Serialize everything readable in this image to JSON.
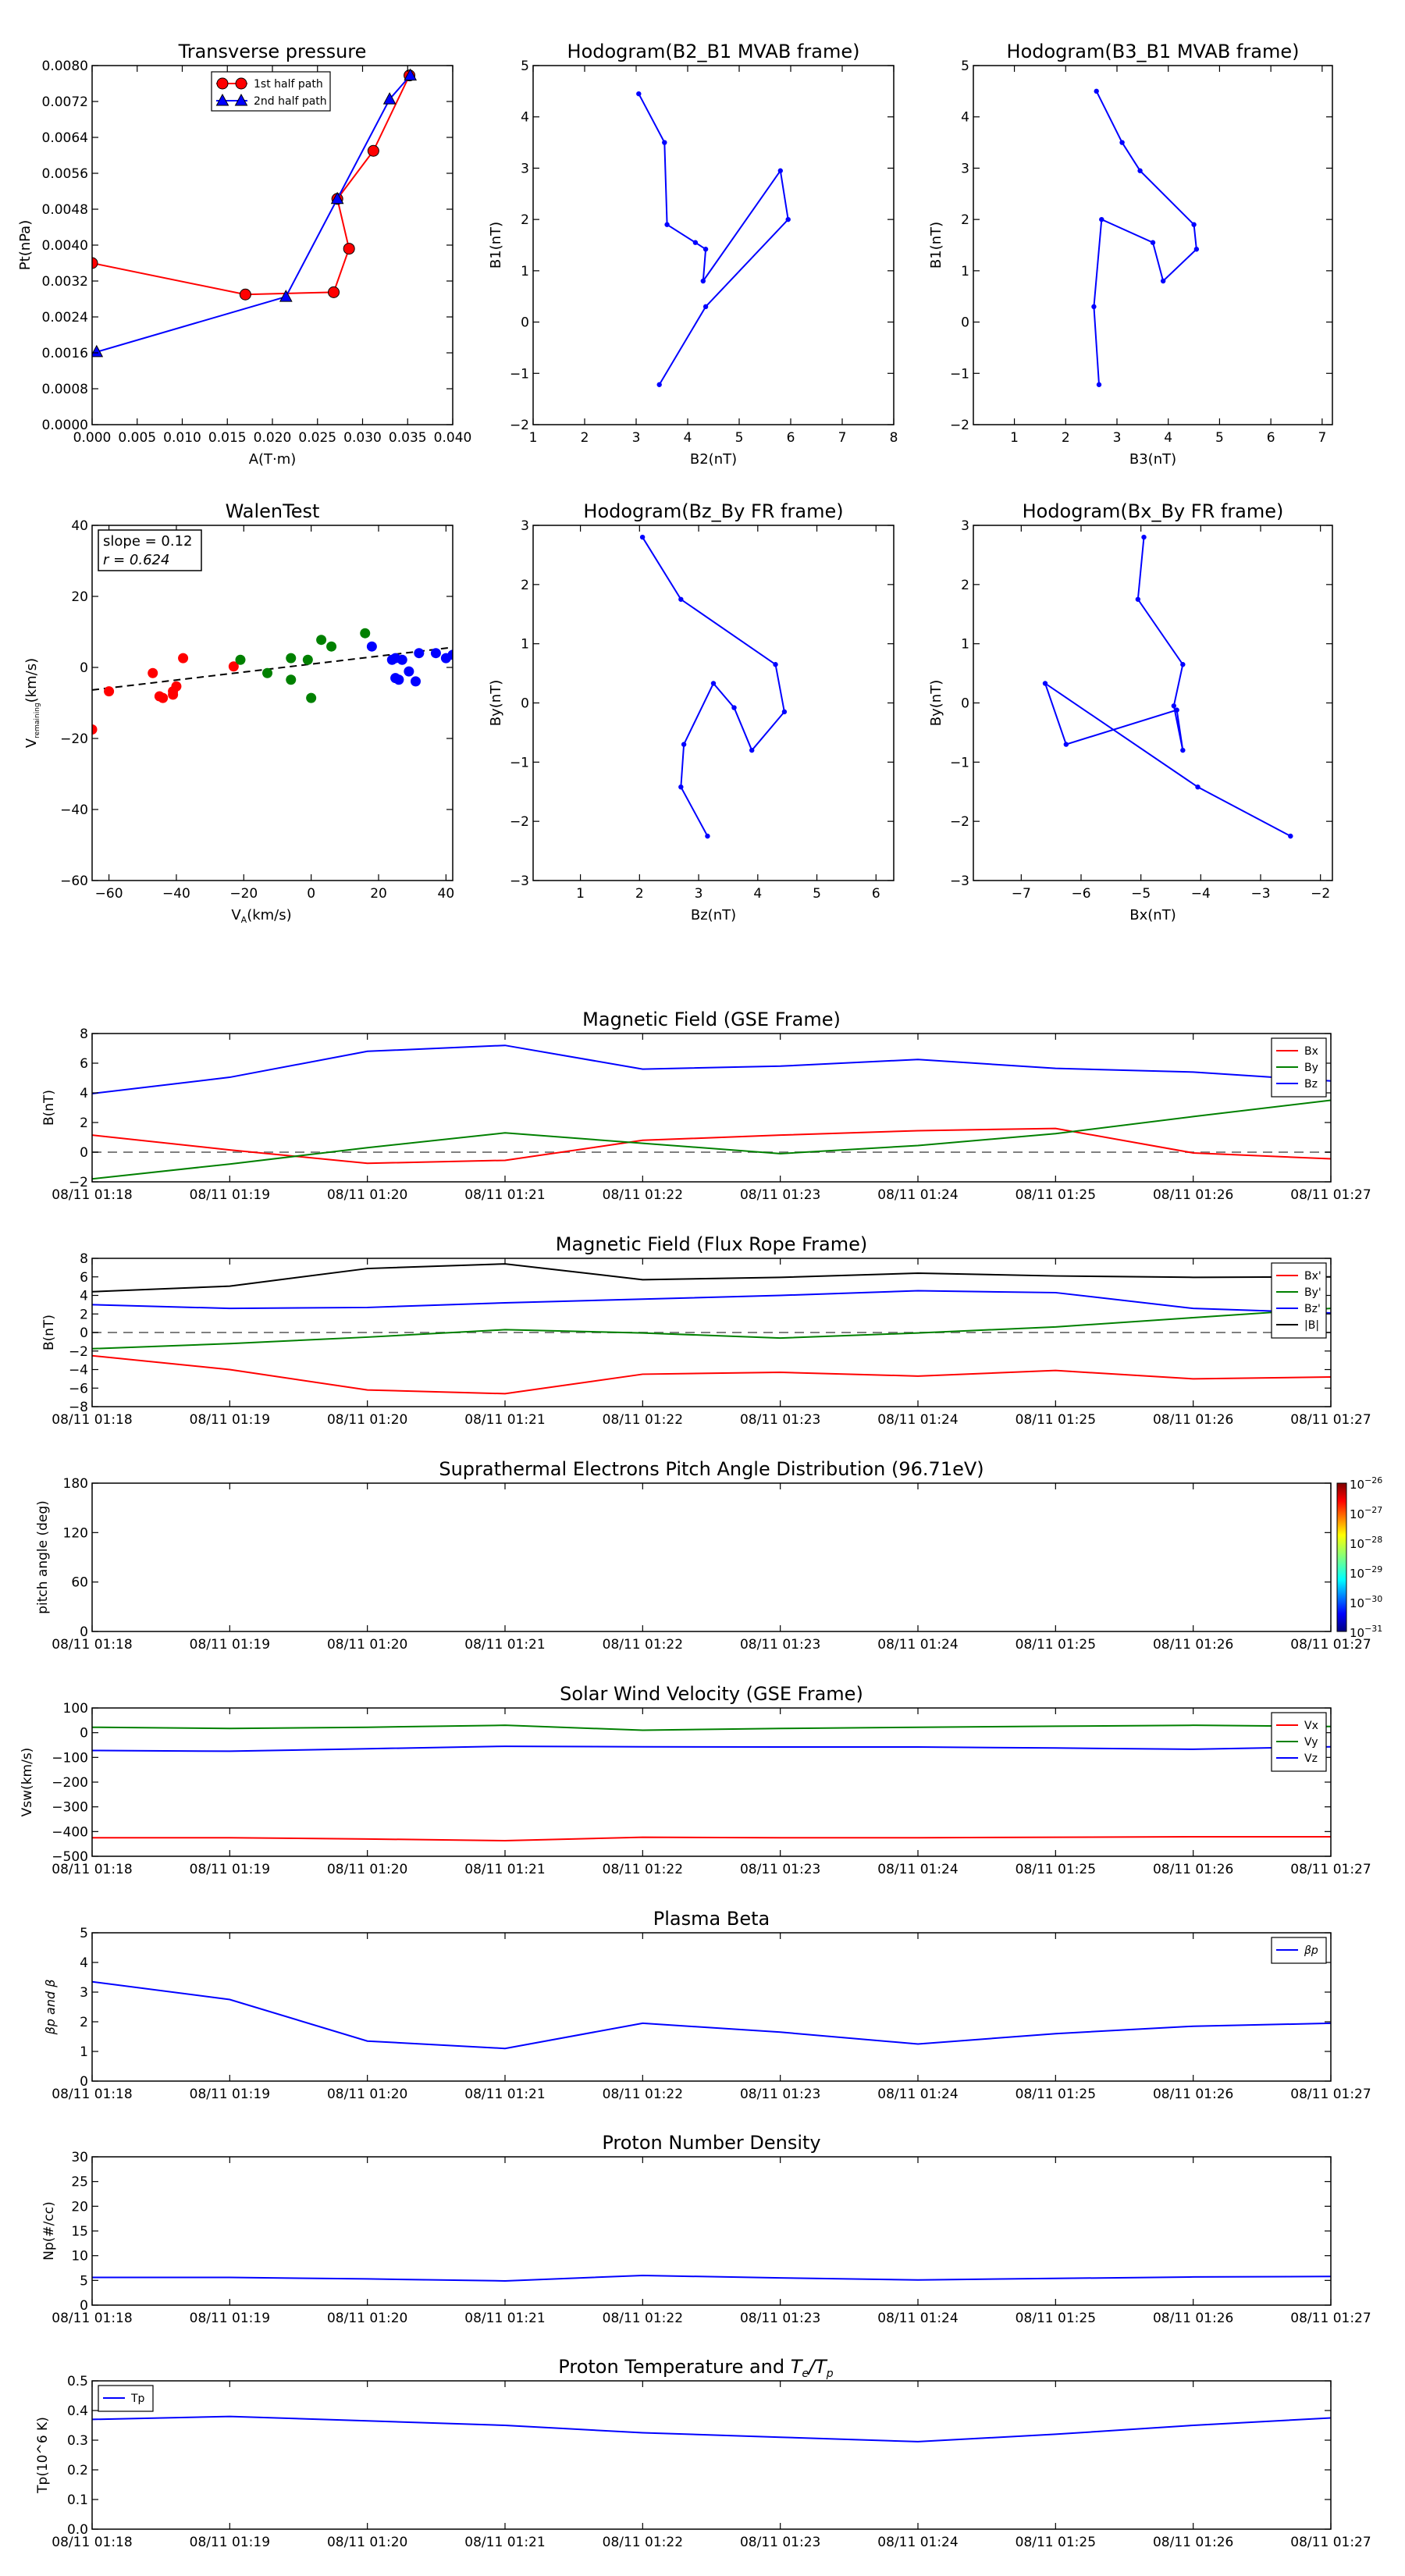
{
  "colors": {
    "red": "#ff0000",
    "green": "#008000",
    "blue": "#0000ff",
    "black": "#000000",
    "dash": "#808080"
  },
  "time_ticks": [
    "08/11 01:18",
    "08/11 01:19",
    "08/11 01:20",
    "08/11 01:21",
    "08/11 01:22",
    "08/11 01:23",
    "08/11 01:24",
    "08/11 01:25",
    "08/11 01:26",
    "08/11 01:27"
  ],
  "chart_data": [
    {
      "id": "pt",
      "type": "line",
      "title": "Transverse pressure",
      "xlabel": "A(T·m)",
      "ylabel": "Pt(nPa)",
      "xlim": [
        0,
        0.04
      ],
      "ylim": [
        0,
        0.008
      ],
      "xticks": [
        "0.000",
        "0.005",
        "0.010",
        "0.015",
        "0.020",
        "0.025",
        "0.030",
        "0.035",
        "0.040"
      ],
      "yticks": [
        "0.0000",
        "0.0008",
        "0.0016",
        "0.0024",
        "0.0032",
        "0.0040",
        "0.0048",
        "0.0056",
        "0.0064",
        "0.0072",
        "0.0080"
      ],
      "legend": "top-center",
      "series": [
        {
          "name": "1st half path",
          "color": "#ff0000",
          "marker": "circle",
          "x": [
            0.0,
            0.017,
            0.0268,
            0.0285,
            0.0272,
            0.0312,
            0.0352
          ],
          "y": [
            0.0036,
            0.0029,
            0.00295,
            0.00392,
            0.00503,
            0.0061,
            0.00778
          ]
        },
        {
          "name": "2nd half path",
          "color": "#0000ff",
          "marker": "triangle",
          "x": [
            0.0353,
            0.033,
            0.0272,
            0.0215,
            0.0005
          ],
          "y": [
            0.00778,
            0.00725,
            0.00503,
            0.00285,
            0.00162
          ]
        }
      ]
    },
    {
      "id": "h1",
      "type": "line",
      "title": "Hodogram(B2_B1 MVAB frame)",
      "xlabel": "B2(nT)",
      "ylabel": "B1(nT)",
      "xlim": [
        1,
        8
      ],
      "ylim": [
        -2,
        5
      ],
      "xticks": [
        "1",
        "2",
        "3",
        "4",
        "5",
        "6",
        "7",
        "8"
      ],
      "yticks": [
        "−2",
        "−1",
        "0",
        "1",
        "2",
        "3",
        "4",
        "5"
      ],
      "series": [
        {
          "color": "#0000ff",
          "x": [
            3.05,
            3.55,
            3.6,
            4.15,
            4.35,
            4.3,
            5.8,
            5.95,
            4.35,
            3.45
          ],
          "y": [
            4.45,
            3.5,
            1.9,
            1.55,
            1.42,
            0.8,
            2.95,
            2.0,
            0.3,
            -1.22
          ]
        }
      ]
    },
    {
      "id": "h2",
      "type": "line",
      "title": "Hodogram(B3_B1 MVAB frame)",
      "xlabel": "B3(nT)",
      "ylabel": "B1(nT)",
      "xlim": [
        0.2,
        7.2
      ],
      "ylim": [
        -2,
        5
      ],
      "xticks": [
        "1",
        "2",
        "3",
        "4",
        "5",
        "6",
        "7"
      ],
      "xtickvals": [
        1,
        2,
        3,
        4,
        5,
        6,
        7
      ],
      "yticks": [
        "−2",
        "−1",
        "0",
        "1",
        "2",
        "3",
        "4",
        "5"
      ],
      "series": [
        {
          "color": "#0000ff",
          "x": [
            2.6,
            3.1,
            3.45,
            4.5,
            4.55,
            3.9,
            3.7,
            2.7,
            2.55,
            2.65
          ],
          "y": [
            4.5,
            3.5,
            2.95,
            1.9,
            1.42,
            0.8,
            1.55,
            2.0,
            0.3,
            -1.22
          ]
        }
      ]
    },
    {
      "id": "walen",
      "type": "scatter",
      "title": "WalenTest",
      "xlabel": "V_A(km/s)",
      "ylabel": "V_remaining(km/s)",
      "xlim": [
        -65,
        42
      ],
      "ylim": [
        -65,
        42
      ],
      "xticks": [
        "−60",
        "−40",
        "−20",
        "0",
        "20",
        "40"
      ],
      "xtickvals": [
        -60,
        -40,
        -20,
        0,
        20,
        40
      ],
      "yticks": [
        "−60",
        "−40",
        "−20",
        "0",
        "20",
        "40"
      ],
      "annotation": [
        "slope = 0.12",
        "r = 0.624"
      ],
      "fit": {
        "slope": 0.12,
        "intercept": 0.2
      },
      "series": [
        {
          "color": "#ff0000",
          "x": [
            -65,
            -60,
            -47,
            -45,
            -44,
            -41,
            -41,
            -40,
            -38,
            -23
          ],
          "y": [
            -19.5,
            -8,
            -2.5,
            -9.5,
            -10,
            -9,
            -8,
            -6.5,
            2,
            -0.5
          ]
        },
        {
          "color": "#008000",
          "x": [
            -21,
            -13,
            -6,
            -6,
            -1,
            0,
            3,
            6,
            16
          ],
          "y": [
            1.5,
            -2.5,
            2,
            -4.5,
            1.5,
            -10,
            7.5,
            5.5,
            9.5
          ]
        },
        {
          "color": "#0000ff",
          "x": [
            18,
            24,
            25,
            25,
            26,
            27,
            29,
            31,
            32,
            37,
            40,
            42
          ],
          "y": [
            5.5,
            1.5,
            -4,
            2,
            -4.5,
            1.5,
            -2,
            -5,
            3.5,
            3.5,
            2,
            3
          ]
        }
      ]
    },
    {
      "id": "h3",
      "type": "line",
      "title": "Hodogram(Bz_By FR frame)",
      "xlabel": "Bz(nT)",
      "ylabel": "By(nT)",
      "xlim": [
        0.2,
        6.3
      ],
      "ylim": [
        -3,
        3
      ],
      "xticks": [
        "1",
        "2",
        "3",
        "4",
        "5",
        "6"
      ],
      "xtickvals": [
        1,
        2,
        3,
        4,
        5,
        6
      ],
      "yticks": [
        "−3",
        "−2",
        "−1",
        "0",
        "1",
        "2",
        "3"
      ],
      "series": [
        {
          "color": "#0000ff",
          "x": [
            2.05,
            2.7,
            4.3,
            4.45,
            3.9,
            3.6,
            3.25,
            2.75,
            2.7,
            3.15
          ],
          "y": [
            2.8,
            1.75,
            0.65,
            -0.15,
            -0.8,
            -0.08,
            0.33,
            -0.7,
            -1.42,
            -2.25
          ]
        }
      ]
    },
    {
      "id": "h4",
      "type": "line",
      "title": "Hodogram(Bx_By FR frame)",
      "xlabel": "Bx(nT)",
      "ylabel": "By(nT)",
      "xlim": [
        -7.8,
        -1.8
      ],
      "ylim": [
        -3,
        3
      ],
      "xticks": [
        "−7",
        "−6",
        "−5",
        "−4",
        "−3",
        "−2"
      ],
      "xtickvals": [
        -7,
        -6,
        -5,
        -4,
        -3,
        -2
      ],
      "yticks": [
        "−3",
        "−2",
        "−1",
        "0",
        "1",
        "2",
        "3"
      ],
      "series": [
        {
          "color": "#0000ff",
          "x": [
            -4.95,
            -5.05,
            -4.3,
            -4.45,
            -4.3,
            -4.4,
            -6.25,
            -6.6,
            -4.05,
            -2.5
          ],
          "y": [
            2.8,
            1.75,
            0.65,
            -0.05,
            -0.8,
            -0.12,
            -0.7,
            0.33,
            -1.42,
            -2.25
          ]
        }
      ]
    },
    {
      "id": "mf",
      "type": "line",
      "title": "Magnetic Field (GSE Frame)",
      "ylabel": "B(nT)",
      "ylim": [
        -2,
        8
      ],
      "yticks": [
        "−2",
        "0",
        "2",
        "4",
        "6",
        "8"
      ],
      "ytickvals": [
        -2,
        0,
        2,
        4,
        6,
        8
      ],
      "zero_dash": true,
      "legend": "top-right",
      "series": [
        {
          "name": "Bx",
          "color": "#ff0000",
          "values": [
            1.15,
            0.15,
            -0.75,
            -0.55,
            0.8,
            1.15,
            1.45,
            1.6,
            -0.05,
            -0.45
          ]
        },
        {
          "name": "By",
          "color": "#008000",
          "values": [
            -1.8,
            -0.8,
            0.3,
            1.3,
            0.6,
            -0.1,
            0.45,
            1.25,
            2.4,
            3.5
          ]
        },
        {
          "name": "Bz",
          "color": "#0000ff",
          "values": [
            3.95,
            5.05,
            6.8,
            7.2,
            5.6,
            5.8,
            6.25,
            5.65,
            5.4,
            4.8
          ]
        }
      ]
    },
    {
      "id": "fr",
      "type": "line",
      "title": "Magnetic Field (Flux Rope Frame)",
      "ylabel": "B(nT)",
      "ylim": [
        -8,
        8
      ],
      "yticks": [
        "−8",
        "−6",
        "−4",
        "−2",
        "0",
        "2",
        "4",
        "6",
        "8"
      ],
      "ytickvals": [
        -8,
        -6,
        -4,
        -2,
        0,
        2,
        4,
        6,
        8
      ],
      "zero_dash": true,
      "legend": "top-right",
      "series": [
        {
          "name": "Bx'",
          "color": "#ff0000",
          "values": [
            -2.5,
            -4.0,
            -6.2,
            -6.6,
            -4.5,
            -4.3,
            -4.7,
            -4.1,
            -5.0,
            -4.8
          ]
        },
        {
          "name": "By'",
          "color": "#008000",
          "values": [
            -1.75,
            -1.2,
            -0.5,
            0.3,
            -0.05,
            -0.6,
            -0.05,
            0.6,
            1.6,
            2.6
          ]
        },
        {
          "name": "Bz'",
          "color": "#0000ff",
          "values": [
            3.0,
            2.6,
            2.7,
            3.2,
            3.6,
            4.0,
            4.5,
            4.3,
            2.6,
            2.1
          ]
        },
        {
          "name": "|B|",
          "color": "#000000",
          "values": [
            4.4,
            5.0,
            6.9,
            7.4,
            5.7,
            5.95,
            6.4,
            6.1,
            5.95,
            6.0
          ]
        }
      ]
    },
    {
      "id": "pad",
      "type": "heatmap",
      "title": "Suprathermal Electrons Pitch Angle Distribution (96.71eV)",
      "ylabel": "pitch angle (deg)",
      "ylim": [
        0,
        180
      ],
      "yticks": [
        "0",
        "60",
        "120",
        "180"
      ],
      "ytickvals": [
        0,
        60,
        120,
        180
      ],
      "colorbar": {
        "labels": [
          "10",
          "10",
          "10",
          "10",
          "10",
          "10"
        ],
        "exponents": [
          "−26",
          "−27",
          "−28",
          "−29",
          "−30",
          "−31"
        ]
      },
      "series": []
    },
    {
      "id": "vsw",
      "type": "line",
      "title": "Solar Wind Velocity (GSE Frame)",
      "ylabel": "Vsw(km/s)",
      "ylim": [
        -500,
        100
      ],
      "yticks": [
        "−500",
        "−400",
        "−300",
        "−200",
        "−100",
        "0",
        "100"
      ],
      "ytickvals": [
        -500,
        -400,
        -300,
        -200,
        -100,
        0,
        100
      ],
      "legend": "top-right",
      "series": [
        {
          "name": "Vx",
          "color": "#ff0000",
          "values": [
            -425,
            -425,
            -430,
            -437,
            -423,
            -425,
            -425,
            -423,
            -421,
            -421
          ]
        },
        {
          "name": "Vy",
          "color": "#008000",
          "values": [
            22,
            17,
            22,
            30,
            10,
            17,
            22,
            26,
            30,
            25
          ]
        },
        {
          "name": "Vz",
          "color": "#0000ff",
          "values": [
            -72,
            -75,
            -65,
            -55,
            -57,
            -58,
            -58,
            -62,
            -67,
            -57
          ]
        }
      ]
    },
    {
      "id": "beta",
      "type": "line",
      "title": "Plasma Beta",
      "ylabel": "βp and β",
      "ylim": [
        0,
        5
      ],
      "yticks": [
        "0",
        "1",
        "2",
        "3",
        "4",
        "5"
      ],
      "ytickvals": [
        0,
        1,
        2,
        3,
        4,
        5
      ],
      "legend": "top-right",
      "series": [
        {
          "name": "βp",
          "color": "#0000ff",
          "values": [
            3.35,
            2.75,
            1.35,
            1.1,
            1.95,
            1.65,
            1.25,
            1.6,
            1.85,
            1.95
          ]
        }
      ]
    },
    {
      "id": "np",
      "type": "line",
      "title": "Proton Number Density",
      "ylabel": "Np(#/cc)",
      "ylim": [
        0,
        30
      ],
      "yticks": [
        "0",
        "5",
        "10",
        "15",
        "20",
        "25",
        "30"
      ],
      "ytickvals": [
        0,
        5,
        10,
        15,
        20,
        25,
        30
      ],
      "series": [
        {
          "color": "#0000ff",
          "values": [
            5.6,
            5.6,
            5.3,
            4.9,
            6.0,
            5.5,
            5.1,
            5.4,
            5.7,
            5.8
          ]
        }
      ]
    },
    {
      "id": "tp",
      "type": "line",
      "title": "Proton Temperature and Te/Tp",
      "ylabel": "Tp(10^6 K)",
      "ylim": [
        0,
        0.5
      ],
      "yticks": [
        "0.0",
        "0.1",
        "0.2",
        "0.3",
        "0.4",
        "0.5"
      ],
      "ytickvals": [
        0,
        0.1,
        0.2,
        0.3,
        0.4,
        0.5
      ],
      "legend": "top-left",
      "series": [
        {
          "name": "Tp",
          "color": "#0000ff",
          "values": [
            0.37,
            0.38,
            0.365,
            0.35,
            0.325,
            0.31,
            0.295,
            0.32,
            0.35,
            0.375
          ]
        }
      ]
    }
  ]
}
